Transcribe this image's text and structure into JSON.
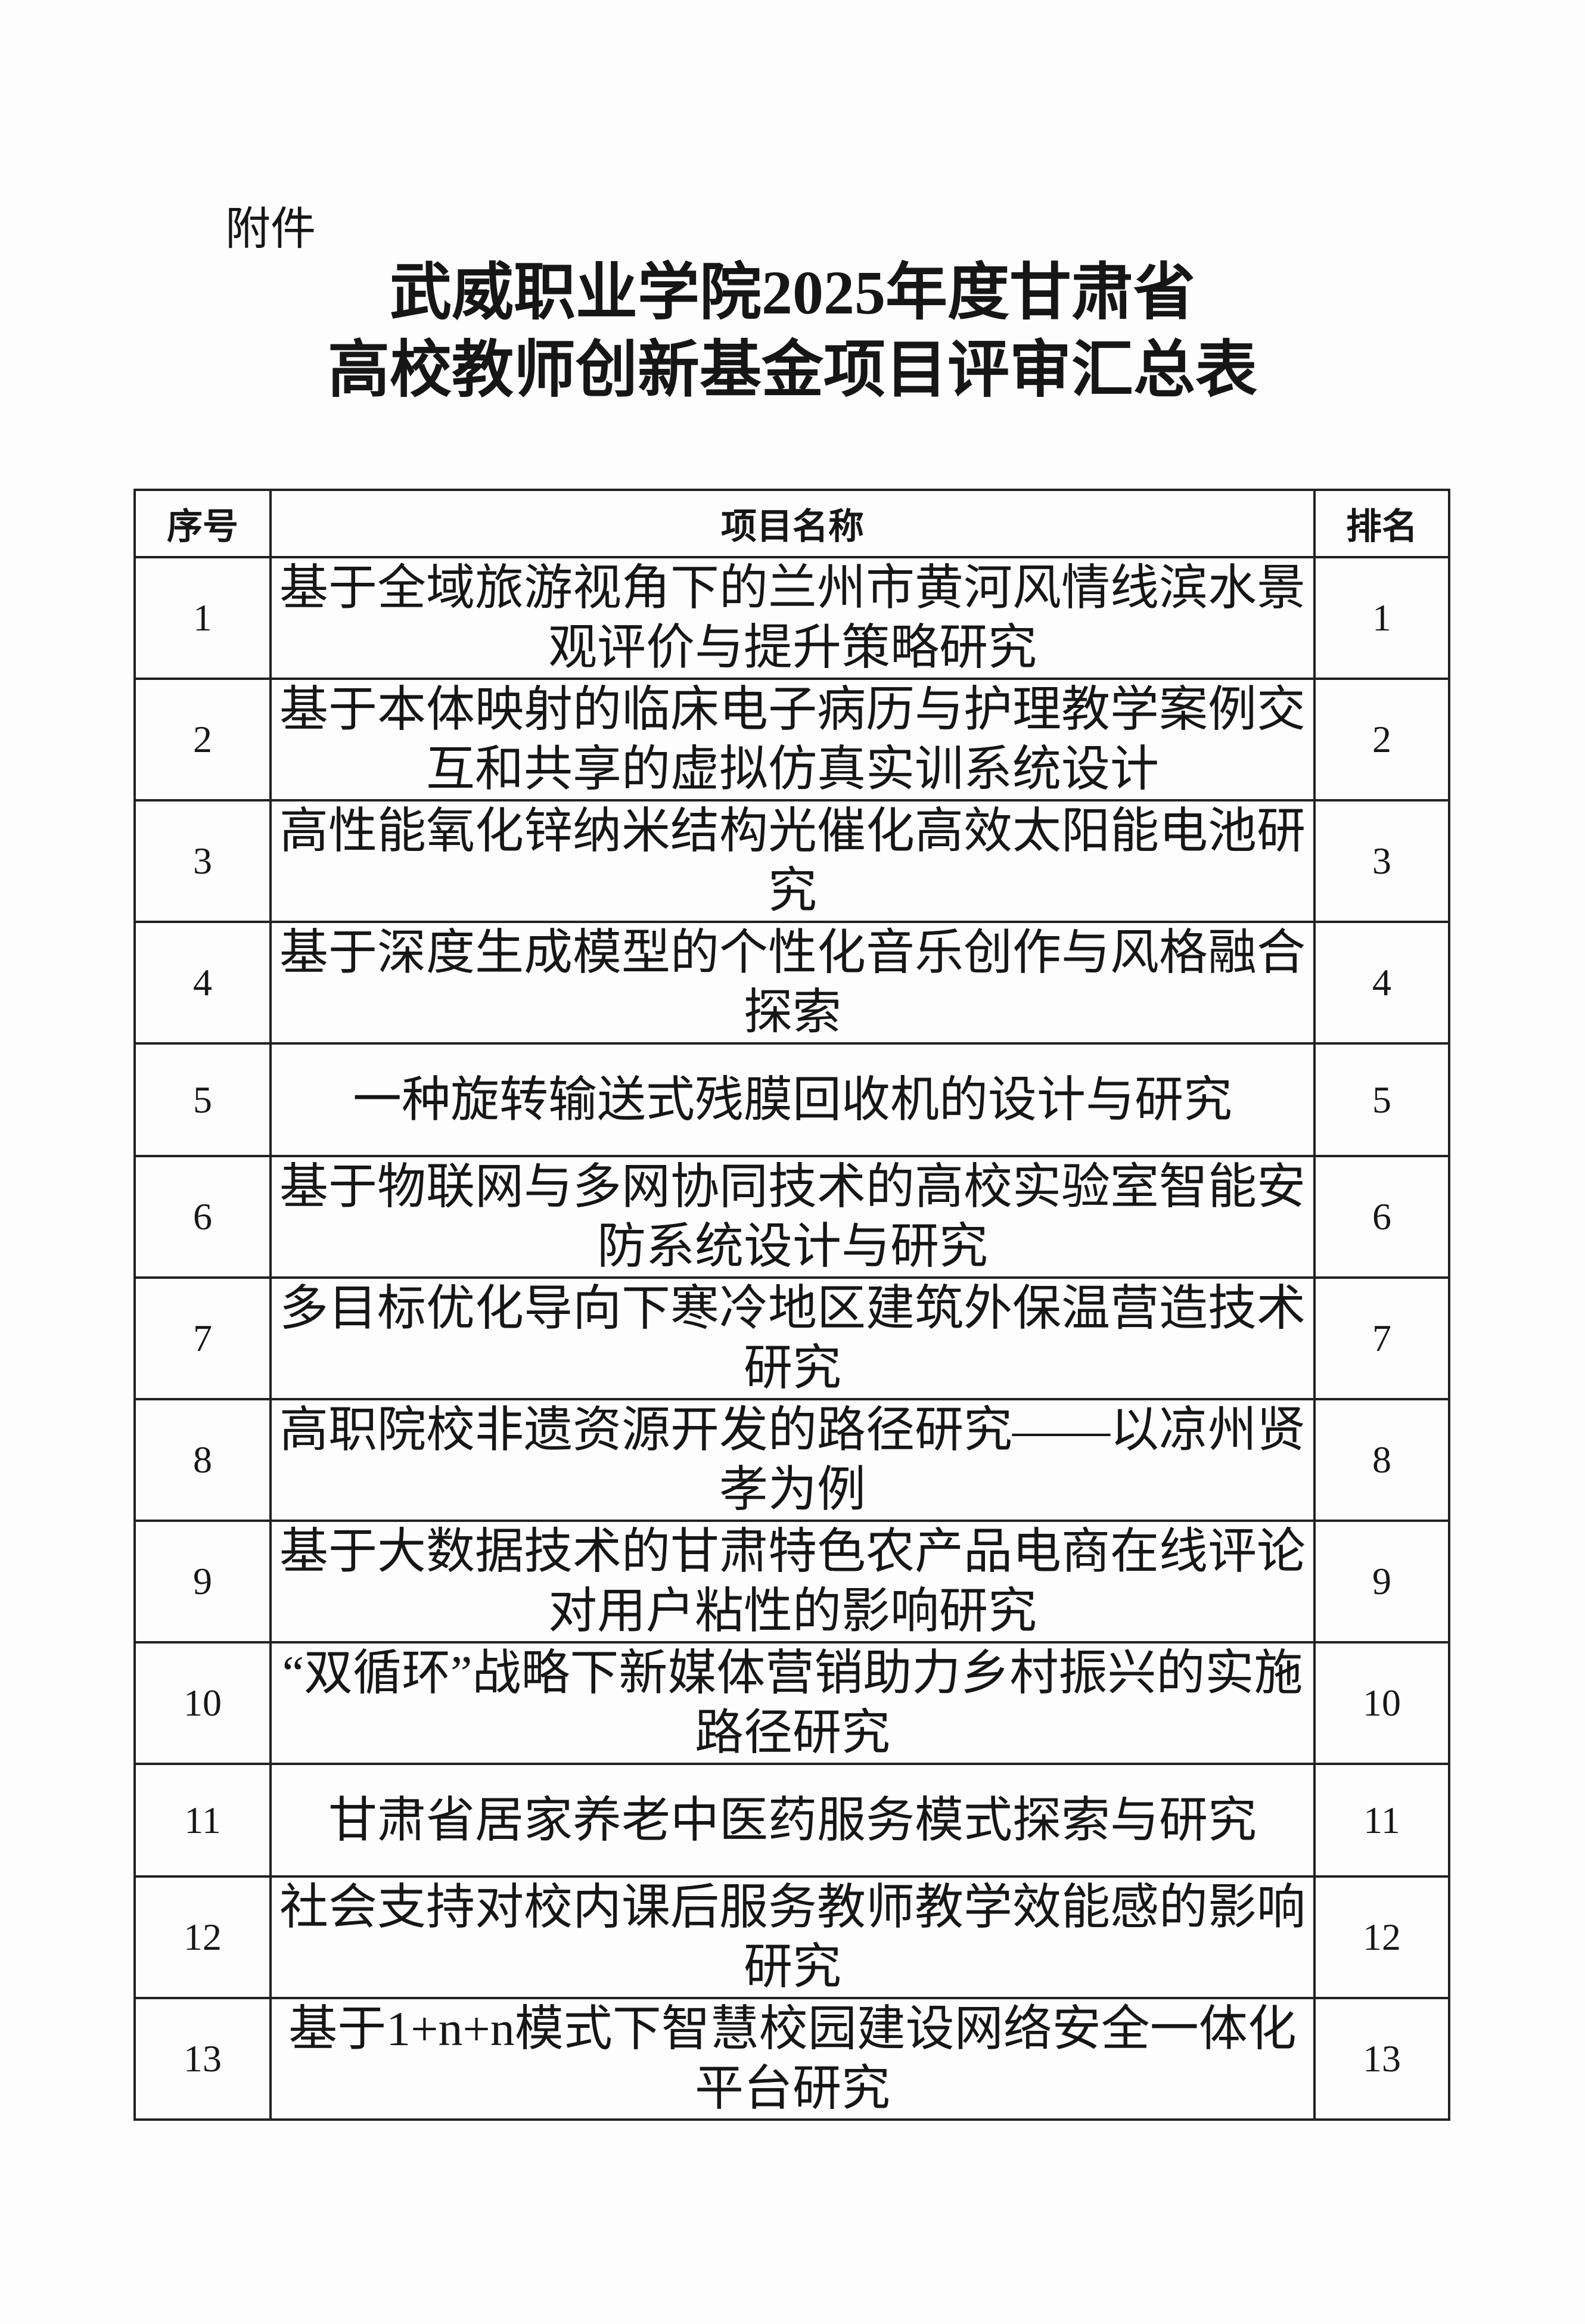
{
  "attachment_label": "附件",
  "title_line1": "武威职业学院2025年度甘肃省",
  "title_line2": "高校教师创新基金项目评审汇总表",
  "table": {
    "headers": [
      "序号",
      "项目名称",
      "排名"
    ],
    "rows": [
      {
        "no": "1",
        "name": "基于全域旅游视角下的兰州市黄河风情线滨水景观评价与提升策略研究",
        "rank": "1"
      },
      {
        "no": "2",
        "name": "基于本体映射的临床电子病历与护理教学案例交互和共享的虚拟仿真实训系统设计",
        "rank": "2"
      },
      {
        "no": "3",
        "name": "高性能氧化锌纳米结构光催化高效太阳能电池研究",
        "rank": "3"
      },
      {
        "no": "4",
        "name": "基于深度生成模型的个性化音乐创作与风格融合探索",
        "rank": "4"
      },
      {
        "no": "5",
        "name": "一种旋转输送式残膜回收机的设计与研究",
        "rank": "5"
      },
      {
        "no": "6",
        "name": "基于物联网与多网协同技术的高校实验室智能安防系统设计与研究",
        "rank": "6"
      },
      {
        "no": "7",
        "name": "多目标优化导向下寒冷地区建筑外保温营造技术研究",
        "rank": "7"
      },
      {
        "no": "8",
        "name": "高职院校非遗资源开发的路径研究——以凉州贤孝为例",
        "rank": "8"
      },
      {
        "no": "9",
        "name": "基于大数据技术的甘肃特色农产品电商在线评论对用户粘性的影响研究",
        "rank": "9"
      },
      {
        "no": "10",
        "name": "“双循环”战略下新媒体营销助力乡村振兴的实施路径研究",
        "rank": "10"
      },
      {
        "no": "11",
        "name": "甘肃省居家养老中医药服务模式探索与研究",
        "rank": "11"
      },
      {
        "no": "12",
        "name": "社会支持对校内课后服务教师教学效能感的影响研究",
        "rank": "12"
      },
      {
        "no": "13",
        "name": "基于1+n+n模式下智慧校园建设网络安全一体化平台研究",
        "rank": "13"
      }
    ]
  }
}
